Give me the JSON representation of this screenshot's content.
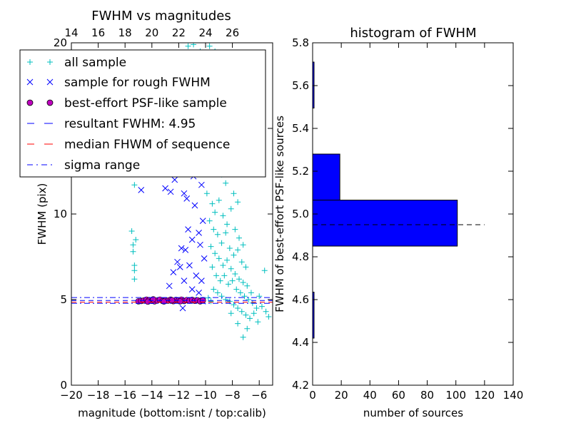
{
  "chart_data": [
    {
      "type": "scatter",
      "title": "FWHM vs magnitudes",
      "xlabel": "magnitude (bottom:isnt / top:calib)",
      "ylabel": "FWHM (pix)",
      "xlim": [
        -20,
        -5
      ],
      "ylim": [
        0,
        20
      ],
      "x_ticks": [
        -20,
        -18,
        -16,
        -14,
        -12,
        -10,
        -8,
        -6
      ],
      "x_tick_labels": [
        "−20",
        "−18",
        "−16",
        "−14",
        "−12",
        "−10",
        "−8",
        "−6"
      ],
      "y_ticks": [
        0,
        5,
        10,
        15,
        20
      ],
      "y_tick_labels": [
        "0",
        "5",
        "10",
        "15",
        "20"
      ],
      "top_axis_ticks": [
        14,
        16,
        18,
        20,
        22,
        24,
        26
      ],
      "top_axis_tick_labels": [
        "14",
        "16",
        "18",
        "20",
        "22",
        "24",
        "26"
      ],
      "top_axis_offset": 34,
      "grid": false,
      "legend_position": "top-left",
      "legend": [
        {
          "label": "all sample",
          "style": "cyan-plus"
        },
        {
          "label": "sample for rough FWHM",
          "style": "blue-x"
        },
        {
          "label": "best-effort PSF-like sample",
          "style": "magenta-circle"
        },
        {
          "label": "resultant FWHM: 4.95",
          "style": "blue-dashed"
        },
        {
          "label": "median FHWM of sequence",
          "style": "red-dashed"
        },
        {
          "label": "sigma range",
          "style": "blue-dashdot"
        }
      ],
      "series": [
        {
          "name": "all sample",
          "marker": "+",
          "color": "#00bfbf",
          "points": [
            [
              -15.3,
              11.7
            ],
            [
              -15.5,
              9.0
            ],
            [
              -15.4,
              8.2
            ],
            [
              -15.4,
              7.8
            ],
            [
              -15.3,
              7.0
            ],
            [
              -15.3,
              6.7
            ],
            [
              -15.3,
              6.2
            ],
            [
              -15.2,
              8.5
            ],
            [
              -11.3,
              19.8
            ],
            [
              -10.9,
              19.9
            ],
            [
              -10.4,
              19.5
            ],
            [
              -10.2,
              18.3
            ],
            [
              -9.7,
              19.8
            ],
            [
              -9.3,
              19.5
            ],
            [
              -9.0,
              18.8
            ],
            [
              -8.6,
              19.2
            ],
            [
              -8.2,
              17.4
            ],
            [
              -7.8,
              16.4
            ],
            [
              -10.0,
              15.4
            ],
            [
              -9.6,
              16.8
            ],
            [
              -9.2,
              15.9
            ],
            [
              -8.9,
              15.0
            ],
            [
              -8.5,
              14.8
            ],
            [
              -8.1,
              14.3
            ],
            [
              -7.7,
              13.5
            ],
            [
              -9.8,
              13.6
            ],
            [
              -9.4,
              12.8
            ],
            [
              -9.1,
              13.2
            ],
            [
              -8.8,
              12.3
            ],
            [
              -8.5,
              11.8
            ],
            [
              -8.2,
              12.6
            ],
            [
              -7.9,
              11.2
            ],
            [
              -7.6,
              10.7
            ],
            [
              -9.9,
              11.2
            ],
            [
              -9.5,
              10.6
            ],
            [
              -9.3,
              10.1
            ],
            [
              -9.0,
              10.8
            ],
            [
              -8.7,
              9.9
            ],
            [
              -8.4,
              9.4
            ],
            [
              -8.1,
              10.3
            ],
            [
              -7.8,
              9.1
            ],
            [
              -7.5,
              8.6
            ],
            [
              -7.2,
              8.2
            ],
            [
              -9.7,
              9.6
            ],
            [
              -9.4,
              9.1
            ],
            [
              -9.1,
              8.8
            ],
            [
              -8.8,
              8.3
            ],
            [
              -8.5,
              8.9
            ],
            [
              -8.2,
              8.0
            ],
            [
              -7.9,
              7.6
            ],
            [
              -7.6,
              7.9
            ],
            [
              -7.3,
              7.2
            ],
            [
              -7.0,
              6.9
            ],
            [
              -9.6,
              8.1
            ],
            [
              -9.3,
              7.7
            ],
            [
              -9.0,
              7.4
            ],
            [
              -8.7,
              7.0
            ],
            [
              -8.4,
              7.3
            ],
            [
              -8.1,
              6.8
            ],
            [
              -7.8,
              6.5
            ],
            [
              -7.5,
              6.2
            ],
            [
              -7.2,
              6.0
            ],
            [
              -6.9,
              5.8
            ],
            [
              -6.6,
              5.4
            ],
            [
              -9.5,
              6.9
            ],
            [
              -9.2,
              6.4
            ],
            [
              -8.9,
              6.1
            ],
            [
              -8.6,
              6.4
            ],
            [
              -8.3,
              5.9
            ],
            [
              -8.0,
              6.1
            ],
            [
              -7.7,
              5.6
            ],
            [
              -7.4,
              5.4
            ],
            [
              -7.1,
              5.2
            ],
            [
              -6.8,
              5.0
            ],
            [
              -6.5,
              4.8
            ],
            [
              -6.2,
              4.5
            ],
            [
              -9.4,
              5.6
            ],
            [
              -9.1,
              5.4
            ],
            [
              -8.8,
              5.2
            ],
            [
              -8.5,
              5.0
            ],
            [
              -8.2,
              4.9
            ],
            [
              -7.9,
              4.7
            ],
            [
              -7.6,
              4.5
            ],
            [
              -7.3,
              4.3
            ],
            [
              -7.0,
              4.1
            ],
            [
              -6.7,
              3.9
            ],
            [
              -6.4,
              4.2
            ],
            [
              -6.1,
              3.7
            ],
            [
              -5.8,
              4.6
            ],
            [
              -5.5,
              4.3
            ],
            [
              -5.3,
              4.0
            ],
            [
              -7.2,
              2.8
            ],
            [
              -6.9,
              3.3
            ],
            [
              -7.6,
              3.6
            ],
            [
              -8.1,
              4.2
            ],
            [
              -5.6,
              6.7
            ],
            [
              -6.0,
              5.2
            ],
            [
              -9.8,
              5.1
            ],
            [
              -9.6,
              4.9
            ],
            [
              -10.2,
              5.0
            ],
            [
              -10.4,
              4.9
            ],
            [
              -10.7,
              5.0
            ]
          ]
        },
        {
          "name": "sample for rough FWHM",
          "marker": "x",
          "color": "#0000ff",
          "points": [
            [
              -14.8,
              11.4
            ],
            [
              -13.0,
              11.5
            ],
            [
              -12.3,
              12.0
            ],
            [
              -11.6,
              11.2
            ],
            [
              -10.9,
              12.2
            ],
            [
              -11.4,
              10.9
            ],
            [
              -10.5,
              13.1
            ],
            [
              -10.3,
              11.7
            ],
            [
              -12.6,
              11.3
            ],
            [
              -10.8,
              10.5
            ],
            [
              -11.3,
              9.1
            ],
            [
              -10.2,
              9.6
            ],
            [
              -10.5,
              8.9
            ],
            [
              -11.0,
              8.5
            ],
            [
              -11.8,
              8.0
            ],
            [
              -12.1,
              7.2
            ],
            [
              -11.5,
              7.9
            ],
            [
              -10.4,
              8.2
            ],
            [
              -11.9,
              6.9
            ],
            [
              -10.1,
              7.4
            ],
            [
              -11.2,
              7.0
            ],
            [
              -12.4,
              6.6
            ],
            [
              -12.7,
              5.8
            ],
            [
              -11.6,
              6.1
            ],
            [
              -10.7,
              6.4
            ],
            [
              -10.3,
              6.1
            ],
            [
              -11.0,
              5.6
            ],
            [
              -10.5,
              5.4
            ],
            [
              -11.7,
              4.5
            ],
            [
              -10.2,
              4.9
            ]
          ]
        },
        {
          "name": "best-effort PSF-like sample",
          "marker": "o",
          "color": "#bf00bf",
          "points": [
            [
              -15.0,
              4.9
            ],
            [
              -14.8,
              4.92
            ],
            [
              -14.6,
              4.95
            ],
            [
              -14.4,
              5.0
            ],
            [
              -14.2,
              4.97
            ],
            [
              -14.0,
              4.93
            ],
            [
              -13.8,
              4.9
            ],
            [
              -13.6,
              4.95
            ],
            [
              -13.4,
              5.0
            ],
            [
              -13.2,
              4.92
            ],
            [
              -13.0,
              4.96
            ],
            [
              -12.8,
              4.94
            ],
            [
              -12.6,
              5.0
            ],
            [
              -12.4,
              4.91
            ],
            [
              -12.2,
              4.98
            ],
            [
              -12.0,
              4.95
            ],
            [
              -11.8,
              5.0
            ],
            [
              -11.6,
              4.92
            ],
            [
              -11.4,
              4.97
            ],
            [
              -11.2,
              4.94
            ],
            [
              -11.0,
              4.99
            ],
            [
              -10.8,
              4.93
            ],
            [
              -10.6,
              4.96
            ],
            [
              -10.4,
              4.9
            ],
            [
              -10.2,
              4.95
            ],
            [
              -14.3,
              4.88
            ],
            [
              -13.9,
              5.02
            ],
            [
              -13.1,
              4.89
            ],
            [
              -12.5,
              4.96
            ],
            [
              -11.9,
              4.9
            ]
          ]
        }
      ],
      "reference_lines": [
        {
          "label": "resultant FWHM: 4.95",
          "orientation": "horizontal",
          "y": 4.95,
          "style": "dashed",
          "color": "#0000ff"
        },
        {
          "label": "median FHWM of sequence",
          "orientation": "horizontal",
          "y": 4.85,
          "style": "dashed",
          "color": "#ff0000"
        },
        {
          "label": "sigma range",
          "orientation": "horizontal",
          "y": 5.12,
          "style": "dashdot",
          "color": "#0000ff"
        },
        {
          "label": "sigma range",
          "orientation": "horizontal",
          "y": 4.78,
          "style": "dashdot",
          "color": "#0000ff"
        }
      ]
    },
    {
      "type": "bar",
      "orientation": "horizontal",
      "title": "histogram of FWHM",
      "xlabel": "number of sources",
      "ylabel": "FWHM of best-effort PSF-like sources",
      "xlim": [
        0,
        140
      ],
      "ylim": [
        4.2,
        5.8
      ],
      "x_ticks": [
        0,
        20,
        40,
        60,
        80,
        100,
        120,
        140
      ],
      "x_tick_labels": [
        "0",
        "20",
        "40",
        "60",
        "80",
        "100",
        "120",
        "140"
      ],
      "y_ticks": [
        4.2,
        4.4,
        4.6,
        4.8,
        5.0,
        5.2,
        5.4,
        5.6,
        5.8
      ],
      "y_tick_labels": [
        "4.2",
        "4.4",
        "4.6",
        "4.8",
        "5.0",
        "5.2",
        "5.4",
        "5.6",
        "5.8"
      ],
      "grid": false,
      "bar_color": "#0000ff",
      "bins": [
        {
          "y0": 4.42,
          "y1": 4.635,
          "count": 1
        },
        {
          "y0": 4.635,
          "y1": 4.85,
          "count": 0
        },
        {
          "y0": 4.85,
          "y1": 5.065,
          "count": 101
        },
        {
          "y0": 5.065,
          "y1": 5.28,
          "count": 19
        },
        {
          "y0": 5.28,
          "y1": 5.495,
          "count": 0
        },
        {
          "y0": 5.495,
          "y1": 5.71,
          "count": 1
        }
      ],
      "reference_line": {
        "orientation": "horizontal",
        "y": 4.95,
        "x_range": [
          0,
          120
        ],
        "style": "dashed",
        "color": "#000000"
      }
    }
  ]
}
